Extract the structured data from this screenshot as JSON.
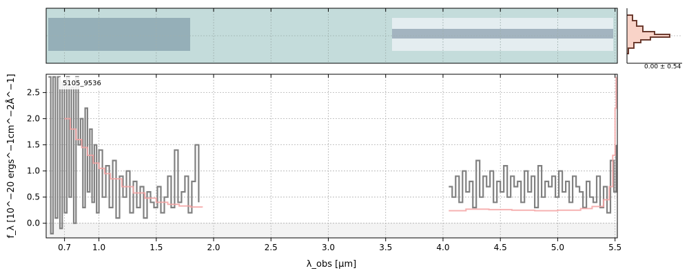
{
  "chart_data": {
    "type": "line",
    "object_id": "5105_9536",
    "xlabel": "λ_obs [μm]",
    "ylabel": "f_λ [10^−20 ergs^−1cm^−2Å^−1]",
    "xlim": [
      0.54,
      5.52
    ],
    "ylim": [
      -0.28,
      2.85
    ],
    "x_ticks": [
      0.7,
      1.0,
      1.5,
      2.0,
      2.5,
      3.0,
      3.5,
      4.0,
      4.5,
      5.0,
      5.5
    ],
    "x_tick_labels": [
      "0.7",
      "1.0",
      "1.5",
      "2.0",
      "2.5",
      "3.0",
      "3.5",
      "4.0",
      "4.5",
      "5.0",
      "5.5"
    ],
    "y_ticks": [
      0.0,
      0.5,
      1.0,
      1.5,
      2.0,
      2.5
    ],
    "y_tick_labels": [
      "0.0",
      "0.5",
      "1.0",
      "1.5",
      "2.0",
      "2.5"
    ],
    "grid": true,
    "colors": {
      "data": "#808080",
      "model": "#f4a3a3",
      "spectrum_bg": "#c4dcdb",
      "hist_fill": "#f9d3c8",
      "hist_edge": "#6b3a2e"
    },
    "histogram_label": "0.00 ± 0.54",
    "series": [
      {
        "role": "data",
        "segments": [
          {
            "x": [
              0.56,
              0.58,
              0.6,
              0.62,
              0.64,
              0.66,
              0.68,
              0.7,
              0.72,
              0.74,
              0.76,
              0.78,
              0.8,
              0.82,
              0.84,
              0.86,
              0.88,
              0.9,
              0.92,
              0.94,
              0.96,
              0.98,
              1.0,
              1.03,
              1.06,
              1.09,
              1.12,
              1.15,
              1.18,
              1.21,
              1.24,
              1.27,
              1.3,
              1.33,
              1.36,
              1.39,
              1.42,
              1.45,
              1.48,
              1.51,
              1.54,
              1.57,
              1.6,
              1.63,
              1.66,
              1.69,
              1.72,
              1.75,
              1.78,
              1.81,
              1.84,
              1.87
            ],
            "y": [
              2.8,
              -0.2,
              2.8,
              0.1,
              2.8,
              -0.1,
              2.7,
              0.2,
              2.8,
              0.5,
              2.6,
              0.0,
              2.8,
              1.5,
              2.0,
              0.3,
              2.2,
              0.6,
              1.8,
              0.4,
              1.5,
              0.2,
              1.4,
              0.5,
              1.1,
              0.3,
              1.2,
              0.1,
              0.9,
              0.5,
              1.0,
              0.2,
              0.8,
              0.3,
              0.7,
              0.1,
              0.6,
              0.4,
              0.3,
              0.7,
              0.2,
              0.5,
              0.9,
              0.3,
              1.4,
              0.4,
              0.6,
              0.9,
              0.2,
              0.8,
              1.5,
              0.4
            ]
          },
          {
            "x": [
              4.05,
              4.08,
              4.11,
              4.14,
              4.17,
              4.2,
              4.23,
              4.26,
              4.29,
              4.32,
              4.35,
              4.38,
              4.41,
              4.44,
              4.47,
              4.5,
              4.53,
              4.56,
              4.59,
              4.62,
              4.65,
              4.68,
              4.71,
              4.74,
              4.77,
              4.8,
              4.83,
              4.86,
              4.89,
              4.92,
              4.95,
              4.98,
              5.01,
              5.04,
              5.07,
              5.1,
              5.13,
              5.16,
              5.19,
              5.22,
              5.25,
              5.28,
              5.31,
              5.34,
              5.37,
              5.4,
              5.43,
              5.46,
              5.49,
              5.51
            ],
            "y": [
              0.7,
              0.5,
              0.9,
              0.4,
              1.0,
              0.6,
              0.8,
              0.3,
              1.2,
              0.5,
              0.9,
              0.7,
              1.0,
              0.4,
              0.8,
              0.6,
              1.1,
              0.5,
              0.9,
              0.7,
              0.8,
              0.4,
              1.0,
              0.6,
              0.9,
              0.3,
              1.1,
              0.5,
              0.8,
              0.7,
              0.9,
              0.5,
              1.0,
              0.6,
              0.8,
              0.4,
              0.9,
              0.7,
              0.6,
              0.3,
              0.8,
              0.5,
              0.4,
              0.9,
              0.3,
              0.7,
              0.2,
              1.2,
              0.6,
              1.5
            ]
          }
        ]
      },
      {
        "role": "model",
        "segments": [
          {
            "x": [
              0.7,
              0.75,
              0.8,
              0.85,
              0.9,
              0.95,
              1.0,
              1.05,
              1.1,
              1.2,
              1.3,
              1.4,
              1.5,
              1.6,
              1.7,
              1.8,
              1.9
            ],
            "y": [
              2.0,
              1.8,
              1.6,
              1.45,
              1.3,
              1.15,
              1.05,
              0.95,
              0.85,
              0.7,
              0.58,
              0.48,
              0.4,
              0.36,
              0.33,
              0.31,
              0.3
            ]
          },
          {
            "x": [
              4.05,
              4.2,
              4.4,
              4.6,
              4.8,
              5.0,
              5.2,
              5.3,
              5.4,
              5.45,
              5.48,
              5.5,
              5.51
            ],
            "y": [
              0.24,
              0.27,
              0.26,
              0.25,
              0.24,
              0.25,
              0.28,
              0.32,
              0.45,
              0.7,
              1.3,
              2.2,
              2.8
            ]
          }
        ]
      }
    ]
  }
}
